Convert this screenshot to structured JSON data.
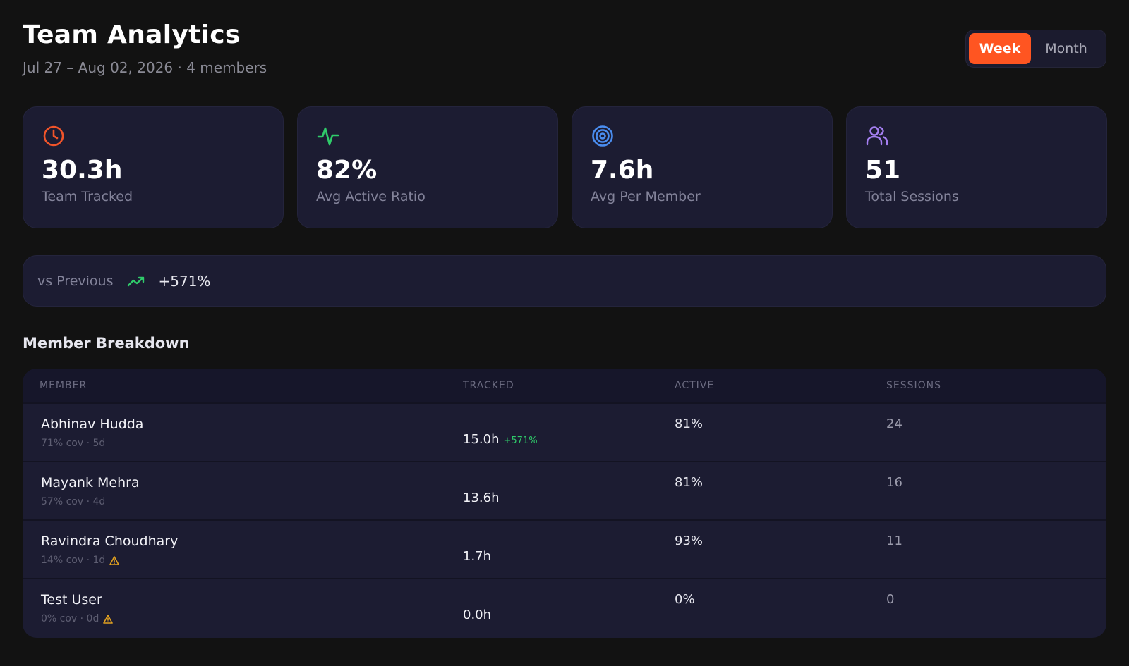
{
  "header": {
    "title": "Team Analytics",
    "subtitle": "Jul 27 – Aug 02, 2026 · 4 members"
  },
  "period_toggle": {
    "options": [
      "Week",
      "Month"
    ],
    "selected": "Week"
  },
  "stats": [
    {
      "icon": "clock-icon",
      "value": "30.3h",
      "label": "Team Tracked",
      "color": "#f0542a"
    },
    {
      "icon": "activity-icon",
      "value": "82%",
      "label": "Avg Active Ratio",
      "color": "#2fcb6a"
    },
    {
      "icon": "target-icon",
      "value": "7.6h",
      "label": "Avg Per Member",
      "color": "#4a8df0"
    },
    {
      "icon": "users-icon",
      "value": "51",
      "label": "Total Sessions",
      "color": "#a57ff2"
    }
  ],
  "comparison": {
    "label": "vs Previous",
    "icon": "trending-up-icon",
    "value": "+571%",
    "color": "#2fcb6a"
  },
  "breakdown": {
    "title": "Member Breakdown",
    "columns": [
      "MEMBER",
      "TRACKED",
      "ACTIVE",
      "SESSIONS"
    ],
    "rows": [
      {
        "name": "Abhinav Hudda",
        "meta": "71% cov · 5d",
        "warning": false,
        "tracked": "15.0h",
        "delta": "+571%",
        "active": "81%",
        "sessions": "24"
      },
      {
        "name": "Mayank Mehra",
        "meta": "57% cov · 4d",
        "warning": false,
        "tracked": "13.6h",
        "delta": "",
        "active": "81%",
        "sessions": "16"
      },
      {
        "name": "Ravindra Choudhary",
        "meta": "14% cov · 1d",
        "warning": true,
        "tracked": "1.7h",
        "delta": "",
        "active": "93%",
        "sessions": "11"
      },
      {
        "name": "Test User",
        "meta": "0% cov · 0d",
        "warning": true,
        "tracked": "0.0h",
        "delta": "",
        "active": "0%",
        "sessions": "0"
      }
    ]
  },
  "colors": {
    "accent": "#ff5521",
    "background": "#121212",
    "card": "#1c1c32",
    "warning": "#e0a020"
  }
}
